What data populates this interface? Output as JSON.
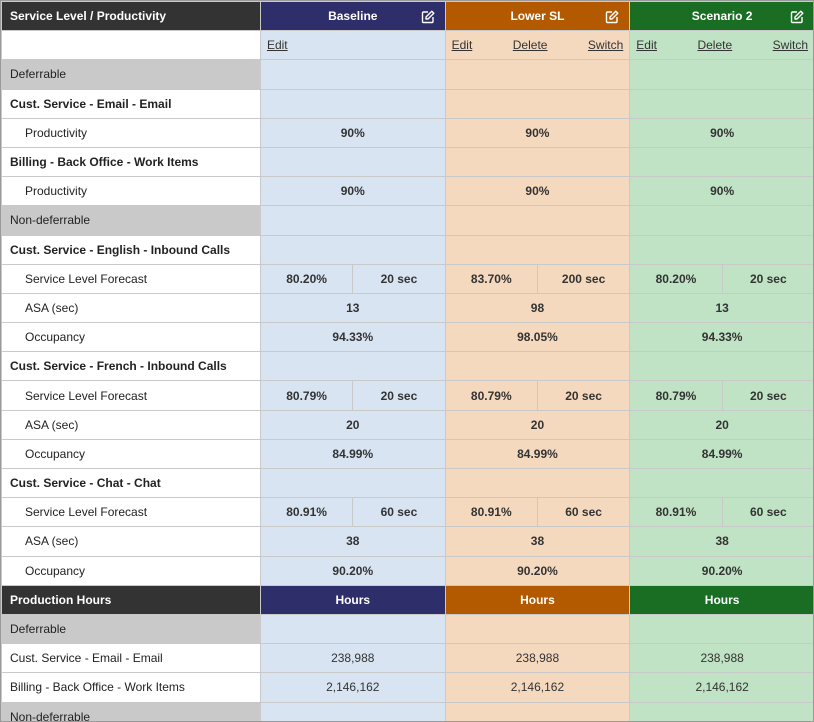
{
  "colors": {
    "baseline": "#2e2e6b",
    "lower_sl": "#b35a00",
    "scenario2": "#1a6e24"
  },
  "header": {
    "title": "Service Level / Productivity",
    "scenarios": [
      {
        "name": "Baseline",
        "icon": "edit-square-icon"
      },
      {
        "name": "Lower SL",
        "icon": "edit-square-icon"
      },
      {
        "name": "Scenario 2",
        "icon": "edit-square-icon"
      }
    ]
  },
  "actions": {
    "baseline": {
      "edit": "Edit"
    },
    "lower_sl": {
      "edit": "Edit",
      "delete": "Delete",
      "switch": "Switch"
    },
    "scenario2": {
      "edit": "Edit",
      "delete": "Delete",
      "switch": "Switch"
    }
  },
  "sl": {
    "deferrable": "Deferrable",
    "email_queue": "Cust. Service - Email - Email",
    "email_prod_label": "Productivity",
    "email_prod": [
      "90%",
      "90%",
      "90%"
    ],
    "backoffice_queue": "Billing - Back Office - Work Items",
    "backoffice_prod_label": "Productivity",
    "backoffice_prod": [
      "90%",
      "90%",
      "90%"
    ],
    "nondeferrable": "Non-deferrable",
    "english_queue": "Cust. Service - English - Inbound Calls",
    "english_slf_label": "Service Level Forecast",
    "english_slf": [
      {
        "pct": "80.20%",
        "sec": "20 sec"
      },
      {
        "pct": "83.70%",
        "sec": "200 sec"
      },
      {
        "pct": "80.20%",
        "sec": "20 sec"
      }
    ],
    "english_asa_label": "ASA (sec)",
    "english_asa": [
      "13",
      "98",
      "13"
    ],
    "english_occ_label": "Occupancy",
    "english_occ": [
      "94.33%",
      "98.05%",
      "94.33%"
    ],
    "french_queue": "Cust. Service - French - Inbound Calls",
    "french_slf_label": "Service Level Forecast",
    "french_slf": [
      {
        "pct": "80.79%",
        "sec": "20 sec"
      },
      {
        "pct": "80.79%",
        "sec": "20 sec"
      },
      {
        "pct": "80.79%",
        "sec": "20 sec"
      }
    ],
    "french_asa_label": "ASA (sec)",
    "french_asa": [
      "20",
      "20",
      "20"
    ],
    "french_occ_label": "Occupancy",
    "french_occ": [
      "84.99%",
      "84.99%",
      "84.99%"
    ],
    "chat_queue": "Cust. Service - Chat - Chat",
    "chat_slf_label": "Service Level Forecast",
    "chat_slf": [
      {
        "pct": "80.91%",
        "sec": "60 sec"
      },
      {
        "pct": "80.91%",
        "sec": "60 sec"
      },
      {
        "pct": "80.91%",
        "sec": "60 sec"
      }
    ],
    "chat_asa_label": "ASA (sec)",
    "chat_asa": [
      "38",
      "38",
      "38"
    ],
    "chat_occ_label": "Occupancy",
    "chat_occ": [
      "90.20%",
      "90.20%",
      "90.20%"
    ]
  },
  "production": {
    "title": "Production Hours",
    "col_labels": [
      "Hours",
      "Hours",
      "Hours"
    ],
    "deferrable": "Deferrable",
    "email_label": "Cust. Service - Email - Email",
    "email_hours": [
      "238,988",
      "238,988",
      "238,988"
    ],
    "backoffice_label": "Billing - Back Office - Work Items",
    "backoffice_hours": [
      "2,146,162",
      "2,146,162",
      "2,146,162"
    ],
    "nondeferrable": "Non-deferrable"
  }
}
